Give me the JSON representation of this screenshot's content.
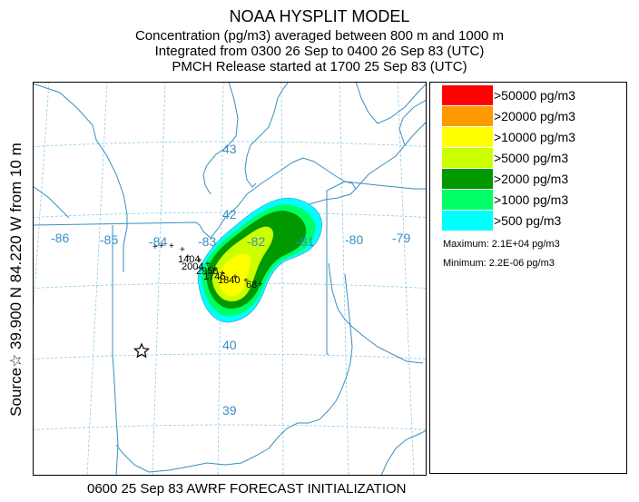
{
  "header": {
    "title": "NOAA HYSPLIT MODEL",
    "line1": "Concentration  (pg/m3) averaged between   800 m and  1000 m",
    "line2": "Integrated from 0300 26 Sep to 0400 26 Sep 83 (UTC)",
    "line3": "PMCH Release started at 1700 25 Sep 83 (UTC)"
  },
  "side_label": "Source☆ 39.900  N  84.220  W  from  10 m",
  "legend": {
    "entries": [
      {
        "label": ">50000 pg/m3",
        "color": "#ff0000"
      },
      {
        "label": ">20000 pg/m3",
        "color": "#ff9900"
      },
      {
        "label": ">10000 pg/m3",
        "color": "#ffff00"
      },
      {
        "label": ">5000 pg/m3",
        "color": "#ccff00"
      },
      {
        "label": ">2000 pg/m3",
        "color": "#009900"
      },
      {
        "label": ">1000 pg/m3",
        "color": "#00ff66"
      },
      {
        "label": ">500 pg/m3",
        "color": "#00ffff"
      }
    ],
    "maximum": "Maximum: 2.1E+04 pg/m3",
    "minimum": "Minimum: 2.2E-06 pg/m3"
  },
  "map": {
    "lon_labels": [
      "-86",
      "-85",
      "-84",
      "-83",
      "-82",
      "-81",
      "-80",
      "-79"
    ],
    "lat_labels": [
      "43",
      "42",
      "40",
      "39"
    ],
    "hour_labels": [
      "1404",
      "2004",
      "2956",
      "1746",
      "1840",
      "68"
    ],
    "source": {
      "lat": 39.9,
      "lon": -84.22
    },
    "colors": {
      "grid": "#8ecae6",
      "boundary": "#3a8fc1"
    }
  },
  "footer": "0600 25 Sep 83 AWRF FORECAST INITIALIZATION"
}
